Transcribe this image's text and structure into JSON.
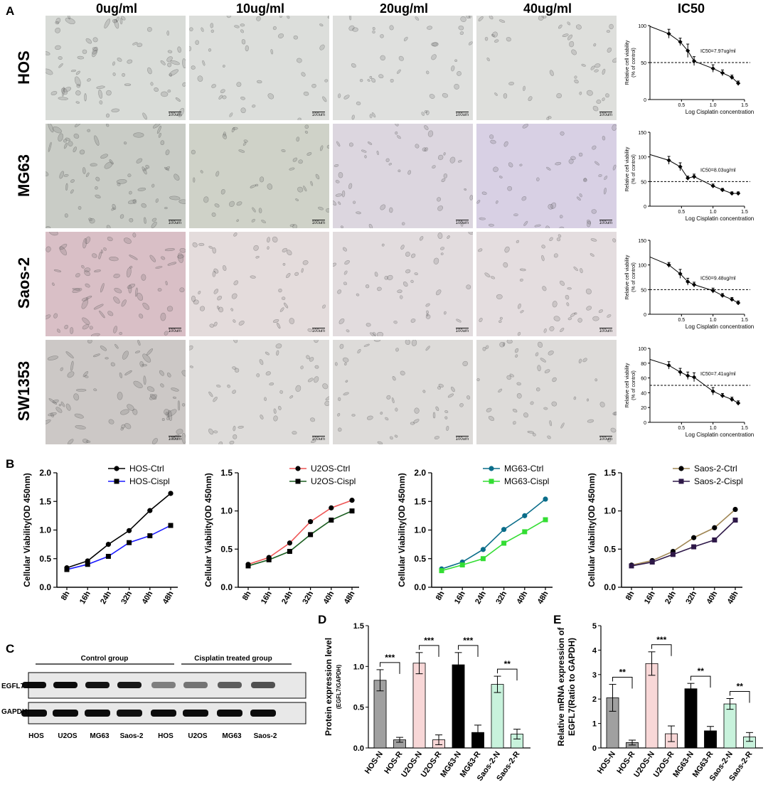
{
  "panels": {
    "a": "A",
    "b": "B",
    "c": "C",
    "d": "D",
    "e": "E"
  },
  "panel_a": {
    "concentrations": [
      "0ug/ml",
      "10ug/ml",
      "20ug/ml",
      "40ug/ml"
    ],
    "ic50_header": "IC50",
    "cell_lines": [
      "HOS",
      "MG63",
      "Saos-2",
      "SW1353"
    ],
    "scale_bar": "100um",
    "tints": [
      [
        "#d9dcd8",
        "#dcdedb",
        "#dfe0de",
        "#dedfdc"
      ],
      [
        "#c9ccc6",
        "#cfd2c8",
        "#dcd6df",
        "#d8d0e4"
      ],
      [
        "#d9bfc6",
        "#e4dcdc",
        "#e2dcde",
        "#e4dddf"
      ],
      [
        "#ccc8c6",
        "#dedcda",
        "#dddbd9",
        "#dddbd9"
      ]
    ]
  },
  "chart_data": [
    {
      "type": "scatter",
      "id": "ic50-HOS",
      "ylabel": "Relative cell viability\n(% of control)",
      "xlabel": "Log Cisplatin concentration",
      "annotation": "IC50=7.97ug/ml",
      "xlim": [
        0,
        1.5
      ],
      "ylim": [
        0,
        100
      ],
      "yticks": [
        0,
        50,
        100
      ],
      "xticks": [
        0.5,
        1.0,
        1.5
      ],
      "ref_line": 50,
      "x": [
        0.3,
        0.48,
        0.6,
        0.7,
        1.0,
        1.15,
        1.3,
        1.4
      ],
      "y": [
        89,
        78,
        66,
        52,
        42,
        36,
        30,
        22
      ],
      "err": [
        6,
        5,
        9,
        6,
        5,
        4,
        3,
        3
      ]
    },
    {
      "type": "scatter",
      "id": "ic50-MG63",
      "ylabel": "Relative cell viability\n(% of control)",
      "xlabel": "Log Cisplatin concentration",
      "annotation": "IC50=8.03ug/ml",
      "xlim": [
        0,
        1.5
      ],
      "ylim": [
        0,
        150
      ],
      "yticks": [
        0,
        50,
        100,
        150
      ],
      "xticks": [
        0.5,
        1.0,
        1.5
      ],
      "ref_line": 50,
      "x": [
        0.3,
        0.48,
        0.6,
        0.7,
        1.0,
        1.15,
        1.3,
        1.4
      ],
      "y": [
        93,
        80,
        57,
        60,
        41,
        33,
        26,
        26
      ],
      "err": [
        8,
        8,
        4,
        5,
        4,
        3,
        3,
        3
      ]
    },
    {
      "type": "scatter",
      "id": "ic50-Saos-2",
      "ylabel": "Relative cell viability\n(% of control)",
      "xlabel": "Log Cisplatin concentration",
      "annotation": "IC50=9.48ug/ml",
      "xlim": [
        0,
        1.5
      ],
      "ylim": [
        0,
        150
      ],
      "yticks": [
        0,
        50,
        100,
        150
      ],
      "xticks": [
        0.5,
        1.0,
        1.5
      ],
      "ref_line": 50,
      "x": [
        0.3,
        0.48,
        0.6,
        0.7,
        1.0,
        1.15,
        1.3,
        1.4
      ],
      "y": [
        100,
        82,
        66,
        60,
        48,
        38,
        30,
        23
      ],
      "err": [
        5,
        9,
        7,
        5,
        5,
        4,
        4,
        4
      ]
    },
    {
      "type": "scatter",
      "id": "ic50-SW1353",
      "ylabel": "Relative cell viability\n(% of control)",
      "xlabel": "Log Cisplatin concentration",
      "annotation": "IC50=7.41ug/ml",
      "xlim": [
        0,
        1.5
      ],
      "ylim": [
        0,
        100
      ],
      "yticks": [
        0,
        20,
        40,
        60,
        80,
        100
      ],
      "xticks": [
        0.5,
        1.0,
        1.5
      ],
      "ref_line": 50,
      "x": [
        0.3,
        0.48,
        0.6,
        0.7,
        1.0,
        1.15,
        1.3,
        1.4
      ],
      "y": [
        77,
        68,
        63,
        61,
        42,
        36,
        31,
        26
      ],
      "err": [
        5,
        5,
        5,
        6,
        5,
        3,
        3,
        3
      ]
    },
    {
      "type": "line",
      "id": "growth-HOS",
      "ylabel": "Cellular Viability(OD 450nm)",
      "categories": [
        "8h",
        "16h",
        "24h",
        "32h",
        "40h",
        "48h"
      ],
      "ylim": [
        0,
        2.0
      ],
      "yticks": [
        "0.0",
        "0.5",
        "1.0",
        "1.5",
        "2.0"
      ],
      "series": [
        {
          "name": "HOS-Ctrl",
          "color": "#000000",
          "line": "#000000",
          "marker": "circle",
          "values": [
            0.34,
            0.46,
            0.75,
            0.99,
            1.34,
            1.64
          ]
        },
        {
          "name": "HOS-Cispl",
          "color": "#000000",
          "line": "#1a1aff",
          "marker": "square",
          "values": [
            0.31,
            0.4,
            0.54,
            0.78,
            0.9,
            1.08
          ]
        }
      ]
    },
    {
      "type": "line",
      "id": "growth-U2OS",
      "ylabel": "Cellular Viability(OD 450nm)",
      "categories": [
        "8h",
        "16h",
        "24h",
        "32h",
        "40h",
        "48h"
      ],
      "ylim": [
        0,
        1.5
      ],
      "yticks": [
        "0.0",
        "0.5",
        "1.0",
        "1.5"
      ],
      "series": [
        {
          "name": "U2OS-Ctrl",
          "color": "#000000",
          "line": "#ee5555",
          "marker": "circle",
          "values": [
            0.3,
            0.39,
            0.58,
            0.86,
            1.04,
            1.14
          ]
        },
        {
          "name": "U2OS-Cispl",
          "color": "#000000",
          "line": "#1b5e20",
          "marker": "square",
          "values": [
            0.28,
            0.36,
            0.47,
            0.69,
            0.88,
            1.0
          ]
        }
      ]
    },
    {
      "type": "line",
      "id": "growth-MG63",
      "ylabel": "Cellular Viability(OD 450nm)",
      "categories": [
        "8h",
        "16h",
        "24h",
        "32h",
        "40h",
        "48h"
      ],
      "ylim": [
        0,
        2.0
      ],
      "yticks": [
        "0.0",
        "0.5",
        "1.0",
        "1.5",
        "2.0"
      ],
      "series": [
        {
          "name": "MG63-Ctrl",
          "color": "#0a6d8a",
          "line": "#0a6d8a",
          "marker": "circle",
          "values": [
            0.32,
            0.44,
            0.66,
            1.01,
            1.25,
            1.54
          ]
        },
        {
          "name": "MG63-Cispl",
          "color": "#33dd33",
          "line": "#33dd33",
          "marker": "square",
          "values": [
            0.29,
            0.39,
            0.5,
            0.77,
            0.97,
            1.18
          ]
        }
      ]
    },
    {
      "type": "line",
      "id": "growth-Saos-2",
      "ylabel": "Cellular Viability(OD 450nm)",
      "categories": [
        "8h",
        "16h",
        "24h",
        "32h",
        "40h",
        "48h"
      ],
      "ylim": [
        0,
        1.5
      ],
      "yticks": [
        "0.0",
        "0.5",
        "1.0",
        "1.5"
      ],
      "series": [
        {
          "name": "Saos-2-Ctrl",
          "color": "#000000",
          "line": "#a08755",
          "marker": "circle",
          "values": [
            0.29,
            0.35,
            0.47,
            0.65,
            0.78,
            1.02
          ]
        },
        {
          "name": "Saos-2-Cispl",
          "color": "#2e1848",
          "line": "#2e1848",
          "marker": "square",
          "values": [
            0.28,
            0.33,
            0.43,
            0.53,
            0.62,
            0.88
          ]
        }
      ]
    },
    {
      "type": "bar",
      "id": "protein",
      "ylabel": "Protein expression level",
      "ylabel2": "(EGFL7/GAPDH)",
      "categories": [
        "HOS-N",
        "HOS-R",
        "U2OS-N",
        "U2OS-R",
        "MG63-N",
        "MG63-R",
        "Saos-2-N",
        "Saos-2-R"
      ],
      "values": [
        0.83,
        0.1,
        1.04,
        0.1,
        1.02,
        0.19,
        0.78,
        0.17
      ],
      "err": [
        0.13,
        0.03,
        0.13,
        0.06,
        0.15,
        0.09,
        0.1,
        0.06
      ],
      "colors": [
        "#a0a0a0",
        "#a0a0a0",
        "#f8d7d7",
        "#f8d7d7",
        "#000000",
        "#000000",
        "#c8f2dc",
        "#c8f2dc"
      ],
      "ylim": [
        0,
        1.5
      ],
      "yticks": [
        "0.0",
        "0.5",
        "1.0",
        "1.5"
      ],
      "significance": [
        "***",
        "***",
        "***",
        "**"
      ]
    },
    {
      "type": "bar",
      "id": "mrna",
      "ylabel": "Relative mRNA expression of",
      "ylabel2": "EGFL7(Ratio to GAPDH)",
      "categories": [
        "HOS-N",
        "HOS-R",
        "U2OS-N",
        "U2OS-R",
        "MG63-N",
        "MG63-R",
        "Saos-2-N",
        "Saos-2-R"
      ],
      "values": [
        2.05,
        0.22,
        3.45,
        0.58,
        2.42,
        0.7,
        1.8,
        0.45
      ],
      "err": [
        0.55,
        0.1,
        0.48,
        0.32,
        0.22,
        0.18,
        0.22,
        0.18
      ],
      "colors": [
        "#a0a0a0",
        "#a0a0a0",
        "#f8d7d7",
        "#f8d7d7",
        "#000000",
        "#000000",
        "#c8f2dc",
        "#c8f2dc"
      ],
      "ylim": [
        0,
        5
      ],
      "yticks": [
        "0",
        "1",
        "2",
        "3",
        "4",
        "5"
      ],
      "significance": [
        "**",
        "***",
        "**",
        "**"
      ]
    }
  ],
  "panel_c": {
    "group_labels": [
      "Control group",
      "Cisplatin treated group"
    ],
    "row_labels": [
      "EGFL7",
      "GAPDH"
    ],
    "lane_labels": [
      "HOS",
      "U2OS",
      "MG63",
      "Saos-2",
      "HOS",
      "U2OS",
      "MG63",
      "Saos-2"
    ],
    "egfl7_intensity": [
      0.95,
      0.95,
      0.92,
      0.9,
      0.45,
      0.5,
      0.6,
      0.65
    ],
    "gapdh_intensity": [
      0.95,
      0.95,
      0.95,
      0.93,
      0.95,
      0.95,
      0.95,
      0.95
    ]
  }
}
